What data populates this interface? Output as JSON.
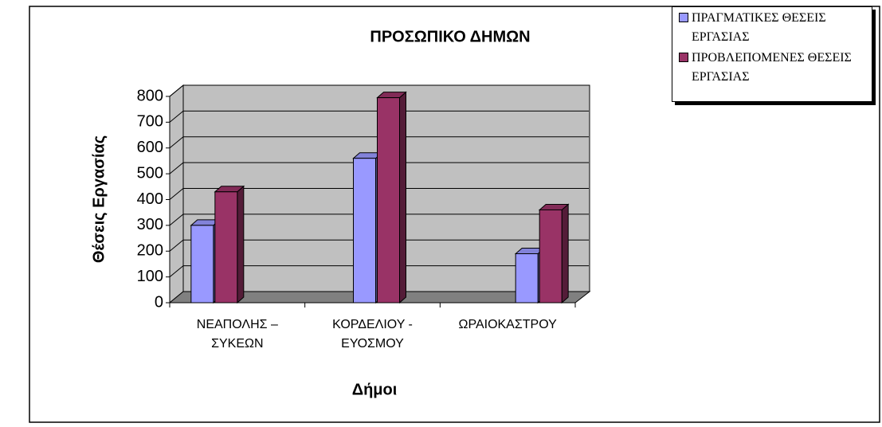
{
  "chart_data": {
    "type": "bar3d",
    "title": "ΠΡΟΣΩΠΙΚΟ ΔΗΜΩΝ",
    "xlabel": "Δήμοι",
    "ylabel": "Θέσεις Εργασίας",
    "categories": [
      "ΝΕΑΠΟΛΗΣ – ΣΥΚΕΩΝ",
      "ΚΟΡΔΕΛΙΟΥ - ΕΥΟΣΜΟΥ",
      "ΩΡΑΙΟΚΑΣΤΡΟΥ"
    ],
    "series": [
      {
        "name": "ΠΡΑΓΜΑΤΙΚΕΣ ΘΕΣΕΙΣ ΕΡΓΑΣΙΑΣ",
        "color": "#9999ff",
        "values": [
          300,
          560,
          190
        ]
      },
      {
        "name": "ΠΡΟΒΛΕΠΟΜΕΝΕΣ ΘΕΣΕΙΣ ΕΡΓΑΣΙΑΣ",
        "color": "#993366",
        "values": [
          430,
          795,
          360
        ]
      }
    ],
    "ylim": [
      0,
      800
    ],
    "yticks": [
      0,
      100,
      200,
      300,
      400,
      500,
      600,
      700,
      800
    ],
    "grid": true,
    "legend": "top-right"
  }
}
